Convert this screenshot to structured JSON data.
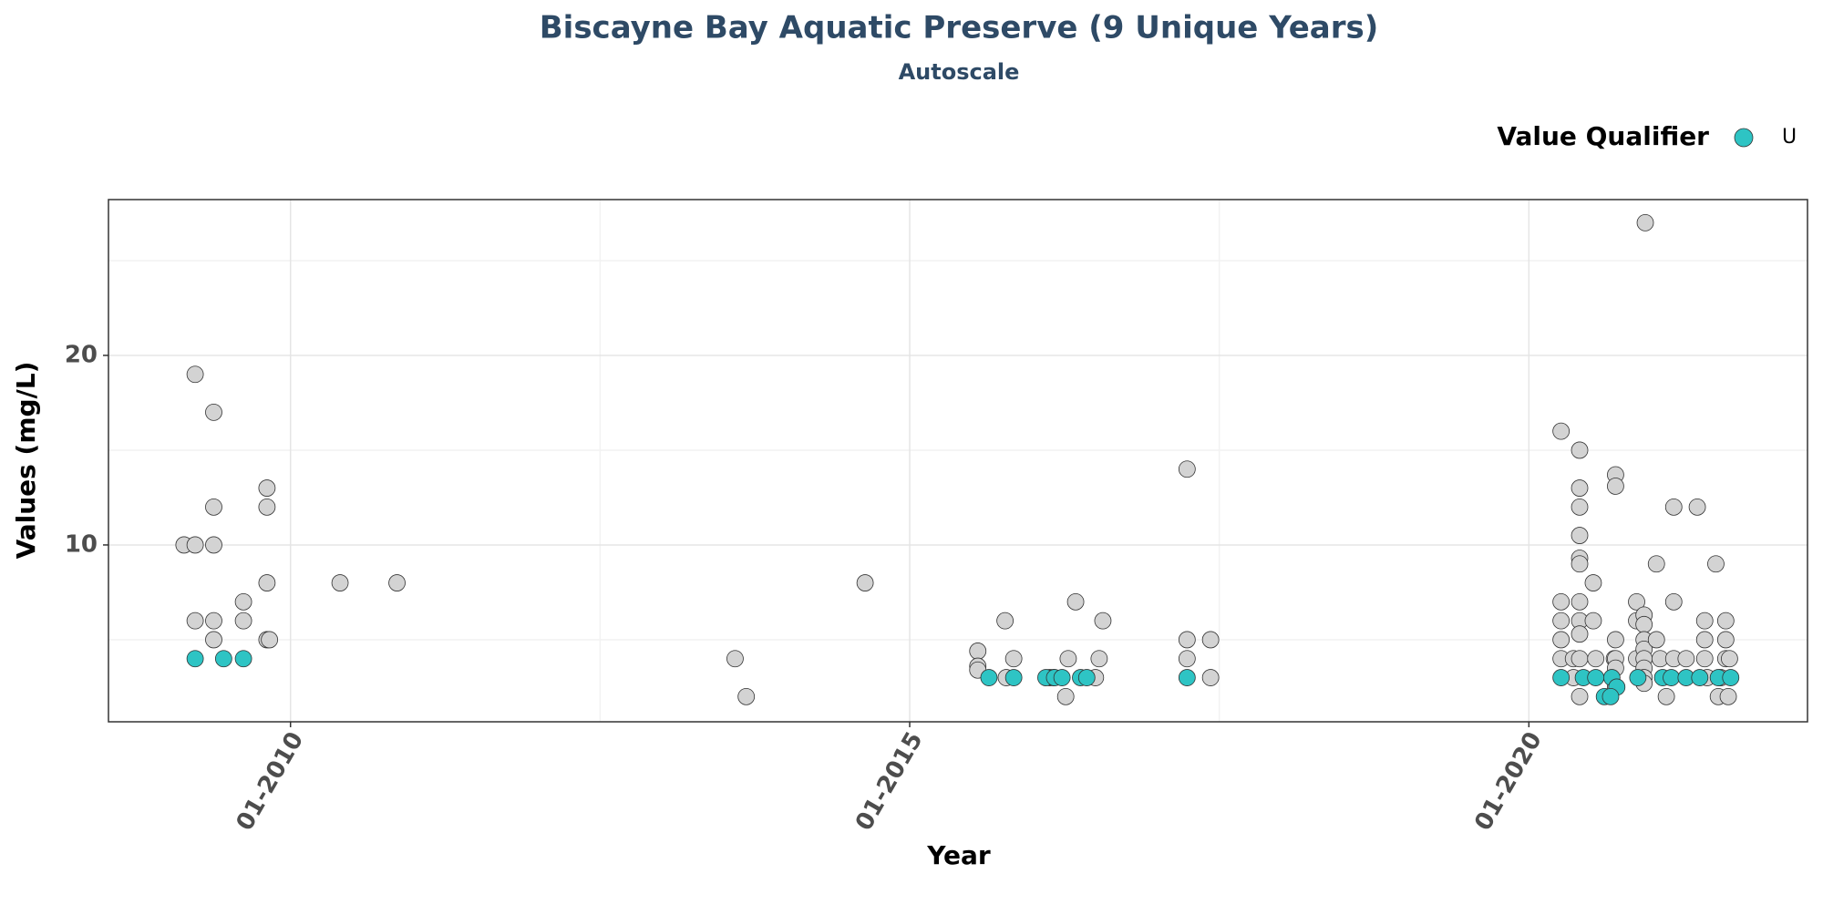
{
  "chart_data": {
    "type": "scatter",
    "title": "Biscayne Bay Aquatic Preserve (9 Unique Years)",
    "subtitle": "Autoscale",
    "x_label": "Year",
    "y_label": "Values (mg/L)",
    "legend_title": "Value Qualifier",
    "legend_position": "top-right",
    "grid": true,
    "xlim": [
      2008.53,
      2022.25
    ],
    "ylim": [
      0.67,
      28.22
    ],
    "xticks": [
      {
        "value": 2010,
        "label": "01-2010"
      },
      {
        "value": 2015,
        "label": "01-2015"
      },
      {
        "value": 2020,
        "label": "01-2020"
      }
    ],
    "yticks": [
      10,
      20
    ],
    "x_minor_grid": [
      2012.5,
      2017.5
    ],
    "y_minor_grid": [
      5,
      15,
      25
    ],
    "series": [
      {
        "color": "#d3d3d3",
        "x": [
          2009.14,
          2009.23,
          2009.38,
          2009.23,
          2009.38,
          2009.38,
          2009.23,
          2009.38,
          2009.38,
          2009.62,
          2009.62,
          2009.81,
          2009.81,
          2009.81,
          2009.81,
          2009.83,
          2010.4,
          2010.86,
          2013.59,
          2013.68,
          2014.64,
          2015.55,
          2015.55,
          2015.55,
          2015.77,
          2015.78,
          2015.84,
          2016.13,
          2016.26,
          2016.28,
          2016.34,
          2016.5,
          2016.53,
          2016.56,
          2016.16,
          2017.24,
          2017.24,
          2017.24,
          2017.43,
          2017.43,
          2020.26,
          2020.26,
          2020.26,
          2020.26,
          2020.26,
          2020.36,
          2020.36,
          2020.41,
          2020.41,
          2020.41,
          2020.41,
          2020.41,
          2020.41,
          2020.41,
          2020.41,
          2020.41,
          2020.41,
          2020.41,
          2020.52,
          2020.52,
          2020.54,
          2020.69,
          2020.7,
          2020.7,
          2020.7,
          2020.7,
          2020.7,
          2020.7,
          2020.87,
          2020.87,
          2020.87,
          2020.93,
          2020.93,
          2020.93,
          2020.93,
          2020.93,
          2020.93,
          2020.93,
          2020.93,
          2020.94,
          2021.03,
          2021.03,
          2021.06,
          2021.11,
          2021.17,
          2021.17,
          2021.17,
          2021.27,
          2021.36,
          2021.42,
          2021.42,
          2021.42,
          2021.44,
          2021.51,
          2021.53,
          2021.59,
          2021.59,
          2021.59,
          2021.61,
          2021.62,
          2021.55
        ],
        "values": [
          10,
          10,
          10,
          19,
          17,
          12,
          6,
          6,
          5,
          7,
          6,
          13,
          12,
          8,
          5,
          5,
          8,
          8,
          4,
          2,
          8,
          4.4,
          3.6,
          3.4,
          6,
          3,
          4,
          3,
          2,
          4,
          7,
          3,
          4,
          6,
          3,
          14,
          5,
          4,
          5,
          3,
          16,
          7,
          6,
          5,
          4,
          4,
          3,
          15,
          13,
          12,
          10.5,
          9.3,
          9,
          7,
          6,
          5.3,
          4,
          2,
          8,
          6,
          4,
          4,
          5,
          4,
          3.5,
          2.5,
          13.7,
          13.1,
          7,
          6,
          4,
          6.3,
          5.8,
          5,
          4.5,
          4,
          3.5,
          3,
          2.7,
          27,
          9,
          5,
          4,
          2,
          12,
          7,
          4,
          4,
          12,
          6,
          5,
          4,
          3,
          9,
          2,
          6,
          5,
          4,
          2,
          4,
          3
        ]
      },
      {
        "name": "U",
        "color": "#2ec4c4",
        "x": [
          2009.23,
          2009.46,
          2009.62,
          2015.64,
          2015.84,
          2016.1,
          2016.17,
          2016.23,
          2016.38,
          2016.43,
          2017.24,
          2020.26,
          2020.44,
          2020.54,
          2020.67,
          2020.71,
          2020.61,
          2020.66,
          2020.88,
          2021.08,
          2021.15,
          2021.27,
          2021.38,
          2021.53,
          2021.63
        ],
        "values": [
          4,
          4,
          4,
          3,
          3,
          3,
          3,
          3,
          3,
          3,
          3,
          3,
          3,
          3,
          3,
          2.5,
          2,
          2,
          3,
          3,
          3,
          3,
          3,
          3,
          3
        ]
      }
    ]
  }
}
